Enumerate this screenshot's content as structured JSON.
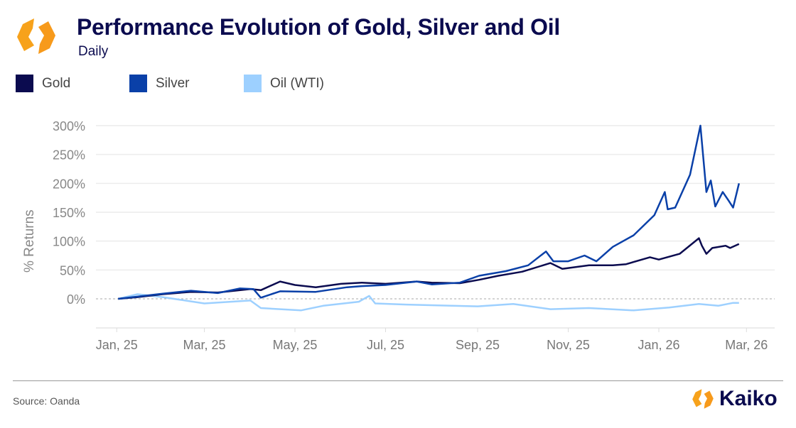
{
  "header": {
    "title": "Performance Evolution of Gold, Silver and Oil",
    "subtitle": "Daily"
  },
  "footer": {
    "source": "Source: Oanda",
    "brand": "Kaiko"
  },
  "colors": {
    "gold": "#0b0b4f",
    "silver": "#0a40a8",
    "oil": "#9dd0ff",
    "logo": "#f7a21b"
  },
  "chart_data": {
    "type": "line",
    "title": "Performance Evolution of Gold, Silver and Oil",
    "subtitle": "Daily",
    "xlabel": "",
    "ylabel": "% Returns",
    "ylim": [
      -40,
      320
    ],
    "yticks": [
      0,
      50,
      100,
      150,
      200,
      250,
      300
    ],
    "ytick_labels": [
      "0%",
      "50%",
      "100%",
      "150%",
      "200%",
      "250%",
      "300%"
    ],
    "xticks": [
      "2025-01-01",
      "2025-03-01",
      "2025-05-01",
      "2025-07-01",
      "2025-09-01",
      "2025-11-01",
      "2026-01-01",
      "2026-03-01"
    ],
    "xtick_labels": [
      "Jan, 25",
      "Mar, 25",
      "May, 25",
      "Jul, 25",
      "Sep, 25",
      "Nov, 25",
      "Jan, 26",
      "Mar, 26"
    ],
    "xlim": [
      "2024-12-18",
      "2026-03-20"
    ],
    "grid": true,
    "legend": "top-left",
    "series": [
      {
        "name": "Gold",
        "color": "#0b0b4f",
        "points": [
          [
            "2025-01-02",
            0
          ],
          [
            "2025-01-15",
            3
          ],
          [
            "2025-02-01",
            8
          ],
          [
            "2025-02-20",
            12
          ],
          [
            "2025-03-10",
            11
          ],
          [
            "2025-04-01",
            17
          ],
          [
            "2025-04-08",
            15
          ],
          [
            "2025-04-21",
            30
          ],
          [
            "2025-05-01",
            24
          ],
          [
            "2025-05-15",
            20
          ],
          [
            "2025-06-01",
            26
          ],
          [
            "2025-06-15",
            28
          ],
          [
            "2025-07-01",
            26
          ],
          [
            "2025-07-22",
            30
          ],
          [
            "2025-08-01",
            28
          ],
          [
            "2025-08-20",
            27
          ],
          [
            "2025-09-02",
            33
          ],
          [
            "2025-09-15",
            40
          ],
          [
            "2025-10-01",
            47
          ],
          [
            "2025-10-20",
            62
          ],
          [
            "2025-10-28",
            52
          ],
          [
            "2025-11-15",
            58
          ],
          [
            "2025-12-01",
            58
          ],
          [
            "2025-12-10",
            60
          ],
          [
            "2025-12-26",
            72
          ],
          [
            "2026-01-01",
            68
          ],
          [
            "2026-01-15",
            78
          ],
          [
            "2026-01-28",
            105
          ],
          [
            "2026-01-30",
            92
          ],
          [
            "2026-02-02",
            78
          ],
          [
            "2026-02-06",
            88
          ],
          [
            "2026-02-15",
            92
          ],
          [
            "2026-02-18",
            88
          ],
          [
            "2026-02-24",
            95
          ]
        ]
      },
      {
        "name": "Silver",
        "color": "#0a40a8",
        "points": [
          [
            "2025-01-02",
            0
          ],
          [
            "2025-02-01",
            9
          ],
          [
            "2025-02-20",
            14
          ],
          [
            "2025-03-10",
            10
          ],
          [
            "2025-03-25",
            18
          ],
          [
            "2025-04-03",
            17
          ],
          [
            "2025-04-08",
            2
          ],
          [
            "2025-04-21",
            13
          ],
          [
            "2025-05-15",
            12
          ],
          [
            "2025-06-05",
            20
          ],
          [
            "2025-06-15",
            22
          ],
          [
            "2025-07-01",
            24
          ],
          [
            "2025-07-22",
            30
          ],
          [
            "2025-08-01",
            25
          ],
          [
            "2025-08-20",
            28
          ],
          [
            "2025-09-02",
            40
          ],
          [
            "2025-09-20",
            48
          ],
          [
            "2025-10-05",
            58
          ],
          [
            "2025-10-17",
            82
          ],
          [
            "2025-10-22",
            65
          ],
          [
            "2025-11-01",
            65
          ],
          [
            "2025-11-12",
            75
          ],
          [
            "2025-11-20",
            65
          ],
          [
            "2025-12-01",
            90
          ],
          [
            "2025-12-15",
            110
          ],
          [
            "2025-12-29",
            145
          ],
          [
            "2026-01-05",
            185
          ],
          [
            "2026-01-07",
            155
          ],
          [
            "2026-01-12",
            158
          ],
          [
            "2026-01-22",
            215
          ],
          [
            "2026-01-29",
            300
          ],
          [
            "2026-02-02",
            185
          ],
          [
            "2026-02-05",
            205
          ],
          [
            "2026-02-08",
            160
          ],
          [
            "2026-02-13",
            185
          ],
          [
            "2026-02-17",
            170
          ],
          [
            "2026-02-20",
            158
          ],
          [
            "2026-02-24",
            200
          ]
        ]
      },
      {
        "name": "Oil (WTI)",
        "color": "#9dd0ff",
        "points": [
          [
            "2025-01-02",
            0
          ],
          [
            "2025-01-15",
            8
          ],
          [
            "2025-02-01",
            3
          ],
          [
            "2025-03-01",
            -8
          ],
          [
            "2025-04-01",
            -3
          ],
          [
            "2025-04-08",
            -16
          ],
          [
            "2025-05-05",
            -20
          ],
          [
            "2025-05-20",
            -12
          ],
          [
            "2025-06-13",
            -5
          ],
          [
            "2025-06-20",
            5
          ],
          [
            "2025-06-24",
            -8
          ],
          [
            "2025-07-15",
            -10
          ],
          [
            "2025-08-15",
            -12
          ],
          [
            "2025-09-01",
            -13
          ],
          [
            "2025-09-25",
            -9
          ],
          [
            "2025-10-20",
            -18
          ],
          [
            "2025-11-15",
            -16
          ],
          [
            "2025-12-15",
            -20
          ],
          [
            "2026-01-08",
            -15
          ],
          [
            "2026-01-28",
            -9
          ],
          [
            "2026-02-10",
            -12
          ],
          [
            "2026-02-20",
            -7
          ],
          [
            "2026-02-24",
            -7
          ]
        ]
      }
    ]
  }
}
